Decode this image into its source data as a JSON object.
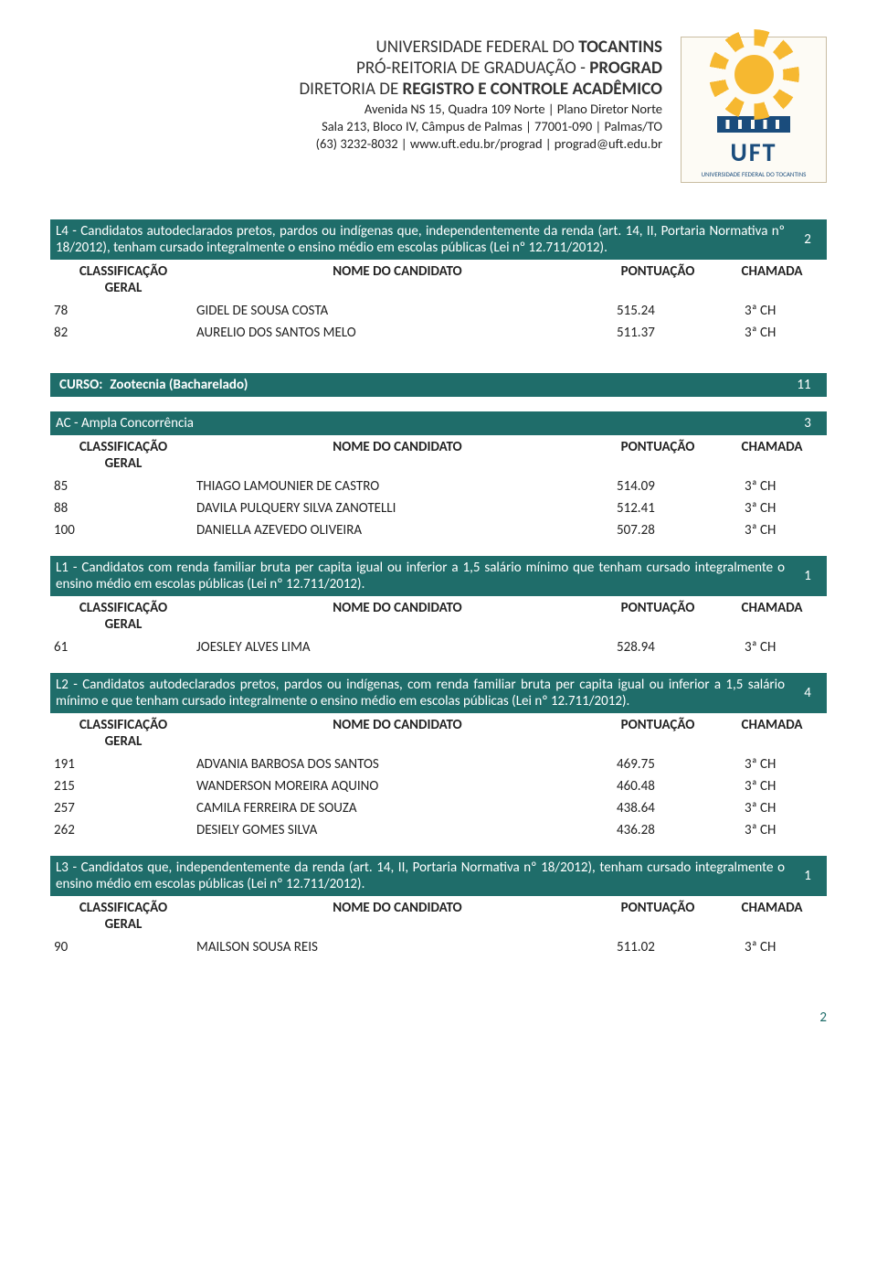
{
  "header": {
    "line1_a": "UNIVERSIDADE FEDERAL DO ",
    "line1_b": "TOCANTINS",
    "line2_a": "PRÓ-REITORIA DE GRADUAÇÃO - ",
    "line2_b": "PROGRAD",
    "line3_a": "DIRETORIA DE ",
    "line3_b": "REGISTRO E CONTROLE ACADÊMICO",
    "addr1": "Avenida NS 15, Quadra 109 Norte | Plano Diretor Norte",
    "addr2": "Sala 213, Bloco IV, Câmpus de Palmas | 77001-090 | Palmas/TO",
    "addr3": "(63) 3232-8032 | www.uft.edu.br/prograd | prograd@uft.edu.br",
    "logo_text": "UFT",
    "logo_caption": "UNIVERSIDADE FEDERAL DO TOCANTINS"
  },
  "colors": {
    "teal": "#1f6d6a",
    "white": "#ffffff",
    "text": "#222222"
  },
  "columns": {
    "rank": "CLASSIFICAÇÃO GERAL",
    "name": "NOME DO CANDIDATO",
    "score": "PONTUAÇÃO",
    "call": "CHAMADA"
  },
  "sections": [
    {
      "type": "category",
      "text": "L4 - Candidatos autodeclarados pretos, pardos ou indígenas que, independentemente da renda (art. 14, II, Portaria Normativa nº 18/2012), tenham cursado integralmente o ensino médio em escolas públicas (Lei nº 12.711/2012).",
      "count": "2",
      "rows": [
        {
          "rank": "78",
          "name": "GIDEL DE SOUSA COSTA",
          "score": "515.24",
          "call": "3ª CH"
        },
        {
          "rank": "82",
          "name": "AURELIO DOS SANTOS MELO",
          "score": "511.37",
          "call": "3ª CH"
        }
      ]
    },
    {
      "type": "course",
      "label": "CURSO:",
      "text": "Zootecnia (Bacharelado)",
      "count": "11"
    },
    {
      "type": "category",
      "text": "AC - Ampla Concorrência",
      "count": "3",
      "rows": [
        {
          "rank": "85",
          "name": "THIAGO LAMOUNIER DE CASTRO",
          "score": "514.09",
          "call": "3ª CH"
        },
        {
          "rank": "88",
          "name": "DAVILA PULQUERY SILVA ZANOTELLI",
          "score": "512.41",
          "call": "3ª CH"
        },
        {
          "rank": "100",
          "name": "DANIELLA AZEVEDO OLIVEIRA",
          "score": "507.28",
          "call": "3ª CH"
        }
      ]
    },
    {
      "type": "category",
      "text": "L1 - Candidatos com renda familiar bruta per capita igual ou inferior a 1,5 salário mínimo que tenham cursado integralmente o ensino médio em escolas públicas (Lei nº 12.711/2012).",
      "count": "1",
      "rows": [
        {
          "rank": "61",
          "name": "JOESLEY ALVES LIMA",
          "score": "528.94",
          "call": "3ª CH"
        }
      ]
    },
    {
      "type": "category",
      "text": "L2 - Candidatos autodeclarados pretos, pardos ou indígenas, com renda familiar bruta per capita igual ou inferior a 1,5 salário mínimo e que tenham cursado integralmente o ensino médio em escolas públicas (Lei nº 12.711/2012).",
      "count": "4",
      "rows": [
        {
          "rank": "191",
          "name": "ADVANIA BARBOSA DOS SANTOS",
          "score": "469.75",
          "call": "3ª CH"
        },
        {
          "rank": "215",
          "name": "WANDERSON MOREIRA AQUINO",
          "score": "460.48",
          "call": "3ª CH"
        },
        {
          "rank": "257",
          "name": "CAMILA FERREIRA DE SOUZA",
          "score": "438.64",
          "call": "3ª CH"
        },
        {
          "rank": "262",
          "name": "DESIELY GOMES SILVA",
          "score": "436.28",
          "call": "3ª CH"
        }
      ]
    },
    {
      "type": "category",
      "text": "L3 - Candidatos que, independentemente da renda (art. 14, II, Portaria Normativa nº 18/2012), tenham cursado integralmente o ensino médio em escolas públicas (Lei nº 12.711/2012).",
      "count": "1",
      "rows": [
        {
          "rank": "90",
          "name": "MAILSON SOUSA REIS",
          "score": "511.02",
          "call": "3ª CH"
        }
      ]
    }
  ],
  "page_number": "2"
}
